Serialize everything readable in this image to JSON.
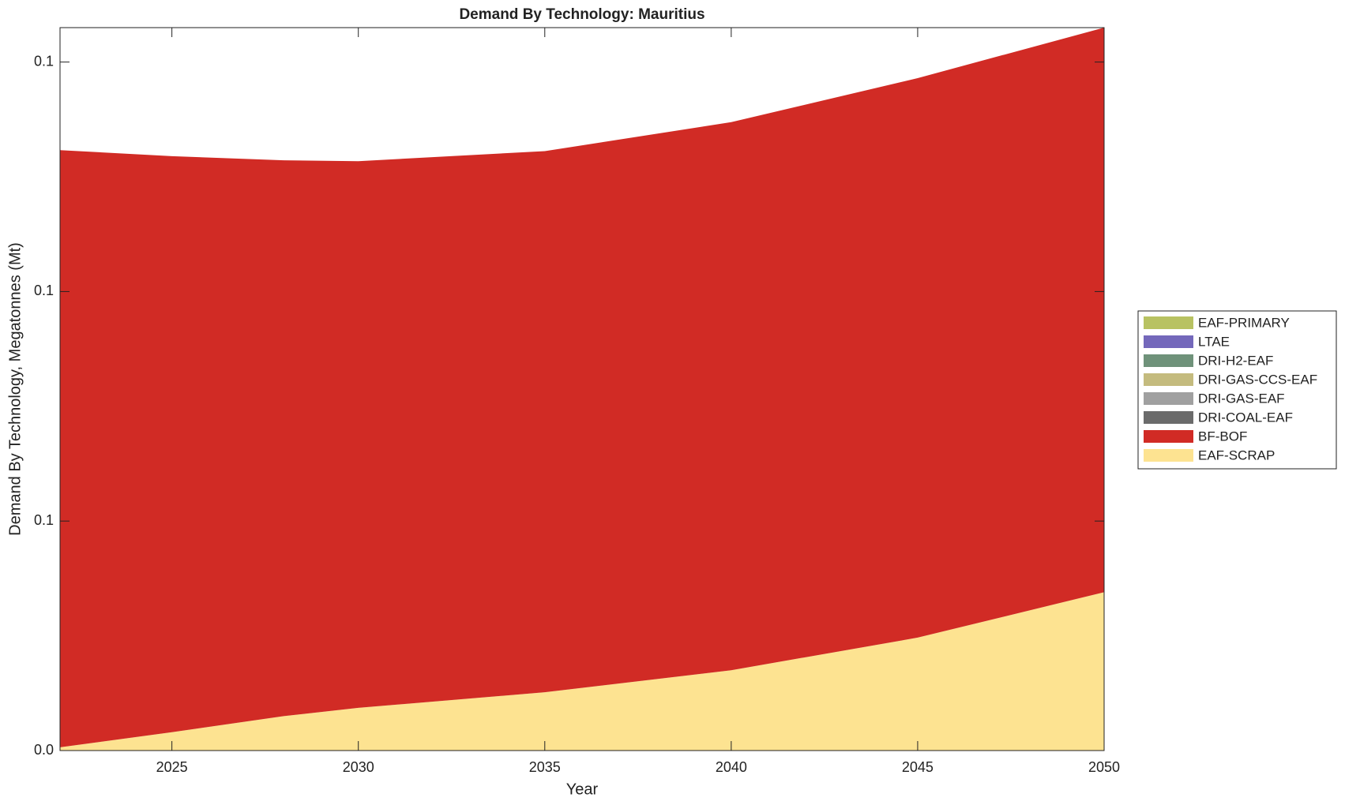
{
  "chart_data": {
    "type": "stacked_area",
    "title": "Demand By Technology: Mauritius",
    "xlabel": "Year",
    "ylabel": "Demand By Technology, Megatonnes (Mt)",
    "x": [
      2022,
      2025,
      2028,
      2030,
      2035,
      2040,
      2045,
      2050
    ],
    "xlim": [
      2022,
      2050
    ],
    "xticks": [
      2025,
      2030,
      2035,
      2040,
      2045,
      2050
    ],
    "ylim": [
      0,
      0.1575
    ],
    "yticks": [
      {
        "value": 0,
        "label": "0.0"
      },
      {
        "value": 0.05,
        "label": "0.1"
      },
      {
        "value": 0.1,
        "label": "0.1"
      },
      {
        "value": 0.15,
        "label": "0.1"
      }
    ],
    "legend": "right",
    "series": [
      {
        "name": "EAF-SCRAP",
        "color": "#fde391",
        "values": [
          0.0007,
          0.004,
          0.0075,
          0.0093,
          0.0127,
          0.0175,
          0.0246,
          0.0345
        ]
      },
      {
        "name": "BF-BOF",
        "color": "#d12b25",
        "values": [
          0.1301,
          0.1255,
          0.1211,
          0.1191,
          0.1179,
          0.1194,
          0.1219,
          0.123
        ]
      },
      {
        "name": "DRI-COAL-EAF",
        "color": "#6b6b6b",
        "values": [
          0,
          0,
          0,
          0,
          0,
          0,
          0,
          0
        ]
      },
      {
        "name": "DRI-GAS-EAF",
        "color": "#a0a0a0",
        "values": [
          0,
          0,
          0,
          0,
          0,
          0,
          0,
          0
        ]
      },
      {
        "name": "DRI-GAS-CCS-EAF",
        "color": "#c4bb7e",
        "values": [
          0,
          0,
          0,
          0,
          0,
          0,
          0,
          0
        ]
      },
      {
        "name": "DRI-H2-EAF",
        "color": "#6f927a",
        "values": [
          0,
          0,
          0,
          0,
          0,
          0,
          0,
          0
        ]
      },
      {
        "name": "LTAE",
        "color": "#7468bb",
        "values": [
          0,
          0,
          0,
          0,
          0,
          0,
          0,
          0
        ]
      },
      {
        "name": "EAF-PRIMARY",
        "color": "#b8c262",
        "values": [
          0,
          0,
          0,
          0,
          0,
          0,
          0,
          0
        ]
      }
    ]
  }
}
